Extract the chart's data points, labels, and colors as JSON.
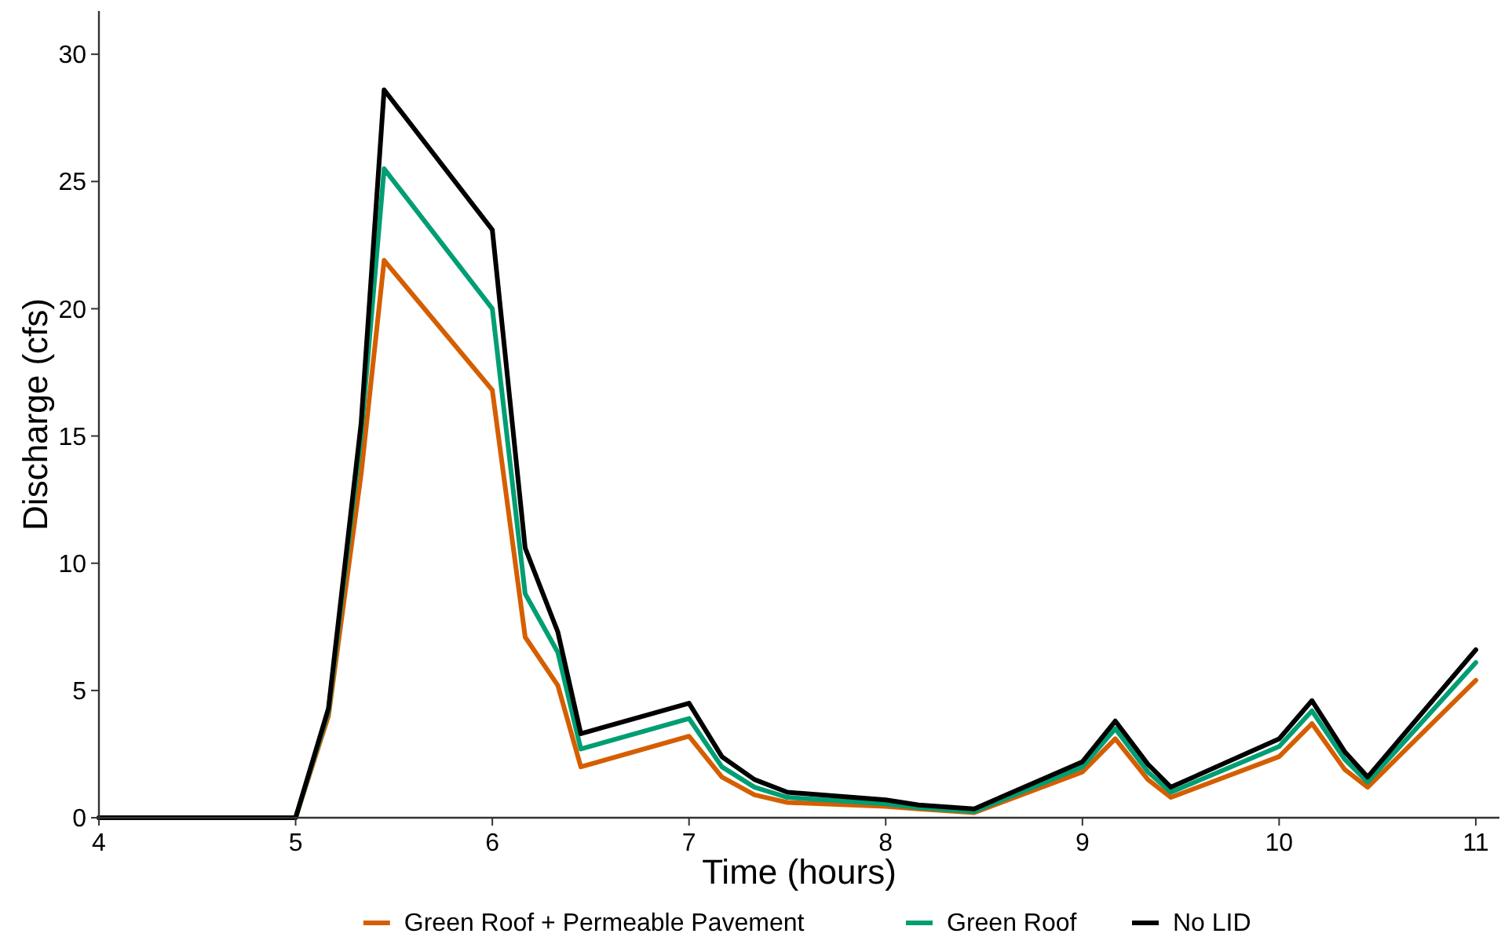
{
  "chart_data": {
    "type": "line",
    "xlabel": "Time (hours)",
    "ylabel": "Discharge (cfs)",
    "x": [
      4,
      5,
      5.167,
      5.333,
      5.45,
      6,
      6.167,
      6.333,
      6.45,
      7,
      7.167,
      7.333,
      7.5,
      8,
      8.167,
      8.45,
      9,
      9.167,
      9.333,
      9.45,
      10,
      10.167,
      10.333,
      10.45,
      11
    ],
    "series": [
      {
        "name": "Green Roof + Permeable Pavement",
        "color": "#d55e00",
        "values": [
          0,
          0,
          4.0,
          13.5,
          21.9,
          16.8,
          7.1,
          5.2,
          2.0,
          3.2,
          1.6,
          0.9,
          0.6,
          0.45,
          0.35,
          0.2,
          1.8,
          3.1,
          1.5,
          0.8,
          2.4,
          3.7,
          1.9,
          1.2,
          5.4
        ]
      },
      {
        "name": "Green Roof",
        "color": "#009e73",
        "values": [
          0,
          0,
          4.2,
          15.0,
          25.5,
          20.0,
          8.8,
          6.5,
          2.7,
          3.9,
          2.0,
          1.2,
          0.8,
          0.55,
          0.4,
          0.25,
          2.0,
          3.5,
          1.8,
          1.0,
          2.8,
          4.2,
          2.3,
          1.4,
          6.1
        ]
      },
      {
        "name": "No LID",
        "color": "#000000",
        "values": [
          0,
          0,
          4.3,
          15.5,
          28.6,
          23.1,
          10.6,
          7.3,
          3.3,
          4.5,
          2.4,
          1.5,
          1.0,
          0.7,
          0.5,
          0.35,
          2.2,
          3.8,
          2.1,
          1.2,
          3.1,
          4.6,
          2.6,
          1.6,
          6.6
        ]
      }
    ],
    "xlim": [
      4,
      11.12
    ],
    "xticks": [
      4,
      5,
      6,
      7,
      8,
      9,
      10,
      11
    ],
    "ylim": [
      0,
      31.7
    ],
    "yticks": [
      0,
      5,
      10,
      15,
      20,
      25,
      30
    ],
    "grid": false,
    "legend": "bottom",
    "marker": "none",
    "line_style": "solid"
  }
}
